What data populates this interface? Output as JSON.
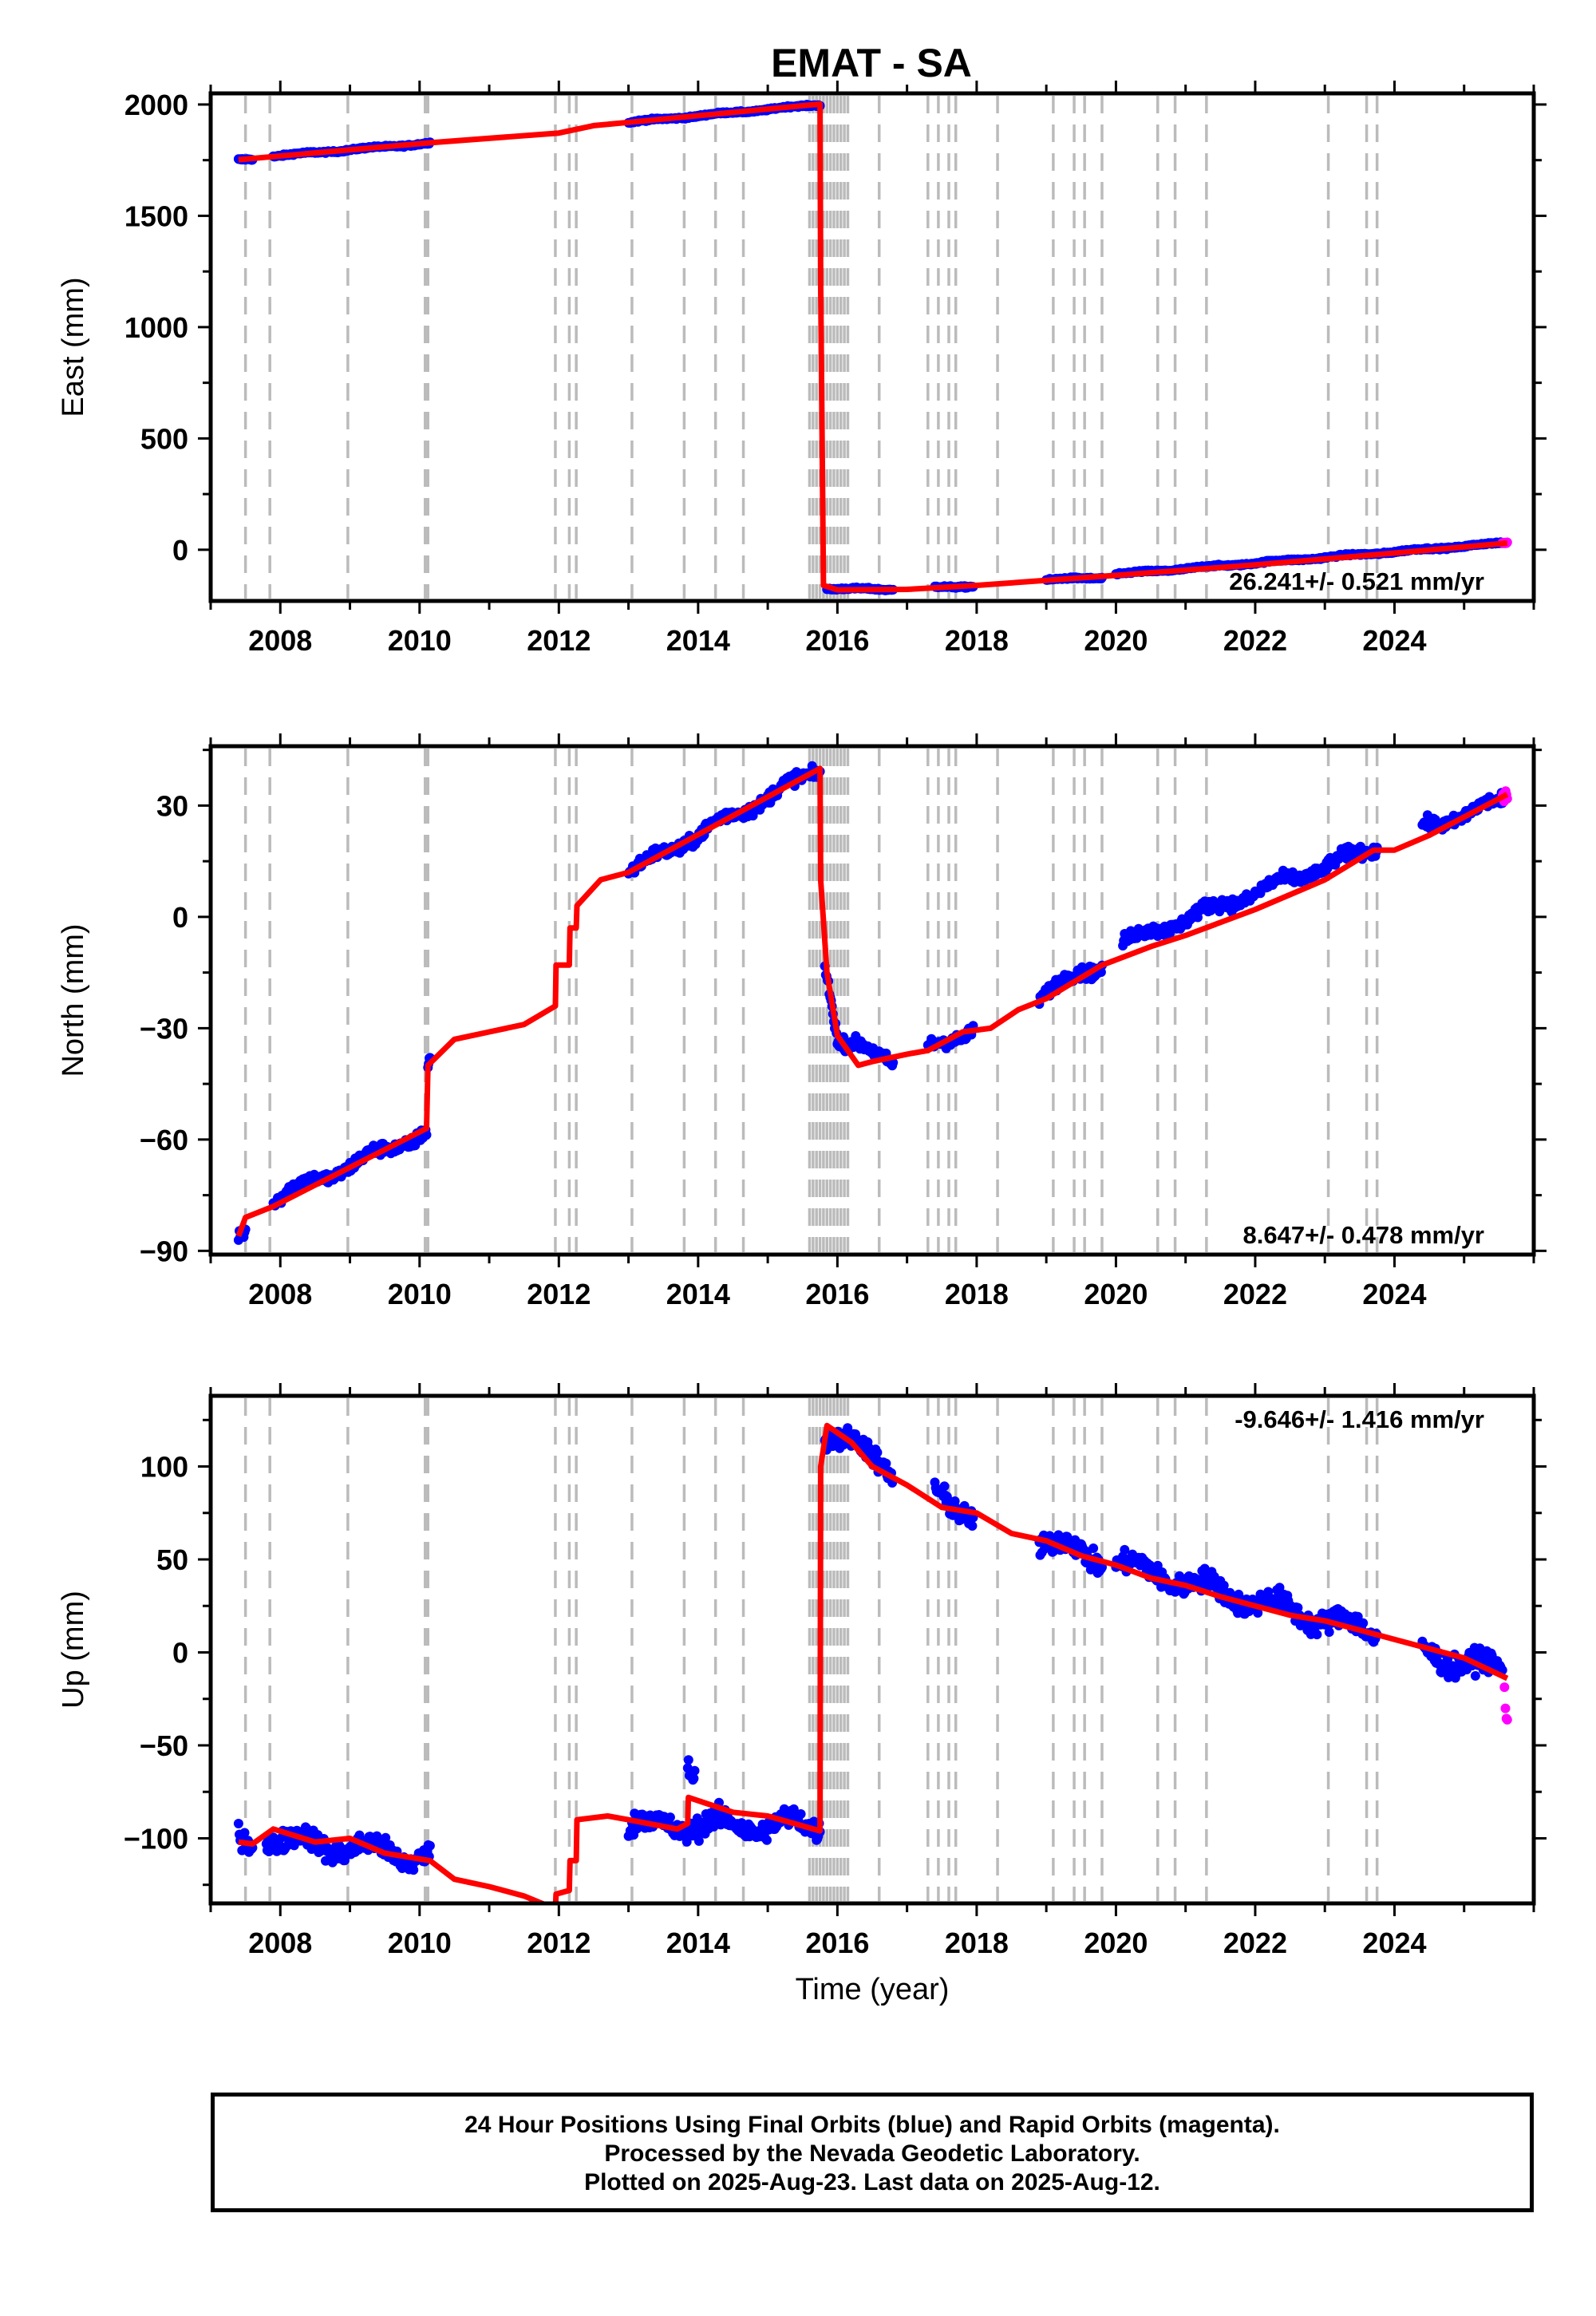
{
  "title": "EMAT - SA",
  "footer": {
    "line1": "24 Hour Positions Using Final Orbits (blue) and Rapid Orbits (magenta).",
    "line2": "Processed by the Nevada Geodetic Laboratory.",
    "line3": "Plotted on 2025-Aug-23. Last data on 2025-Aug-12."
  },
  "chart_data": [
    {
      "type": "scatter",
      "name": "east",
      "title": "EMAT - SA",
      "xlabel": "",
      "ylabel": "East (mm)",
      "xlim": [
        2007.0,
        2026.0
      ],
      "ylim": [
        -230,
        2050
      ],
      "x_ticks": [
        2008,
        2010,
        2012,
        2014,
        2016,
        2018,
        2020,
        2022,
        2024
      ],
      "y_ticks": [
        0,
        500,
        1000,
        1500,
        2000
      ],
      "rate_label": "26.241+/- 0.521 mm/yr",
      "rate_position": "bottom-right",
      "colors": {
        "final": "#0000ff",
        "rapid": "#ff00ff",
        "model": "#ff0000",
        "event_lines": "#bbbbbb"
      },
      "event_lines": [
        2007.5,
        2007.85,
        2008.97,
        2010.08,
        2010.12,
        2011.95,
        2012.15,
        2012.25,
        2013.05,
        2013.8,
        2014.25,
        2014.65,
        2015.6,
        2015.65,
        2015.7,
        2015.75,
        2015.8,
        2015.85,
        2015.9,
        2015.95,
        2016.0,
        2016.05,
        2016.1,
        2016.15,
        2016.6,
        2017.3,
        2017.45,
        2017.6,
        2017.7,
        2018.3,
        2019.1,
        2019.4,
        2019.55,
        2019.8,
        2020.6,
        2020.85,
        2021.3,
        2023.05,
        2023.6,
        2023.75
      ],
      "final_segments": [
        {
          "x": [
            2007.4,
            2007.6
          ],
          "y": [
            1750,
            1755
          ]
        },
        {
          "x": [
            2007.9,
            2010.15
          ],
          "y": [
            1768,
            1827
          ]
        },
        {
          "x": [
            2013.0,
            2015.75
          ],
          "y": [
            1920,
            2000
          ]
        },
        {
          "x": [
            2015.85,
            2016.8
          ],
          "y": [
            -175,
            -178
          ]
        },
        {
          "x": [
            2017.4,
            2017.95
          ],
          "y": [
            -168,
            -163
          ]
        },
        {
          "x": [
            2019.0,
            2019.8
          ],
          "y": [
            -135,
            -125
          ]
        },
        {
          "x": [
            2020.0,
            2025.55
          ],
          "y": [
            -110,
            30
          ]
        }
      ],
      "rapid_segments": [
        {
          "x": [
            2025.55,
            2025.62
          ],
          "y": [
            30,
            33
          ]
        }
      ],
      "model": {
        "x": [
          2007.4,
          2007.9,
          2010.15,
          2012.0,
          2012.5,
          2013.0,
          2015.75,
          2015.76,
          2015.8,
          2016.0,
          2017.0,
          2018.0,
          2020.0,
          2022.0,
          2024.0,
          2025.62
        ],
        "y": [
          1752,
          1766,
          1828,
          1872,
          1905,
          1920,
          2002,
          1200,
          -160,
          -180,
          -178,
          -160,
          -115,
          -68,
          -15,
          30
        ]
      }
    },
    {
      "type": "scatter",
      "name": "north",
      "xlabel": "",
      "ylabel": "North (mm)",
      "xlim": [
        2007.0,
        2026.0
      ],
      "ylim": [
        -91,
        46
      ],
      "x_ticks": [
        2008,
        2010,
        2012,
        2014,
        2016,
        2018,
        2020,
        2022,
        2024
      ],
      "y_ticks": [
        -90,
        -60,
        -30,
        0,
        30
      ],
      "y_tick_labels": [
        "−90",
        "−60",
        "−30",
        "0",
        "30"
      ],
      "rate_label": "8.647+/- 0.478 mm/yr",
      "rate_position": "bottom-right",
      "final_segments": [
        {
          "x": [
            2007.4,
            2007.5
          ],
          "y": [
            -87,
            -85
          ]
        },
        {
          "x": [
            2007.9,
            2010.1
          ],
          "y": [
            -76,
            -58
          ]
        },
        {
          "x": [
            2010.12,
            2010.15
          ],
          "y": [
            -41,
            -38
          ]
        },
        {
          "x": [
            2013.0,
            2015.75
          ],
          "y": [
            12,
            40
          ]
        },
        {
          "x": [
            2015.82,
            2016.0
          ],
          "y": [
            -12,
            -32
          ]
        },
        {
          "x": [
            2016.0,
            2016.8
          ],
          "y": [
            -34,
            -38
          ]
        },
        {
          "x": [
            2017.3,
            2017.95
          ],
          "y": [
            -36,
            -30
          ]
        },
        {
          "x": [
            2018.9,
            2019.8
          ],
          "y": [
            -21,
            -13
          ]
        },
        {
          "x": [
            2020.1,
            2023.75
          ],
          "y": [
            -7,
            19
          ]
        },
        {
          "x": [
            2024.4,
            2025.55
          ],
          "y": [
            24,
            31
          ]
        }
      ],
      "rapid_segments": [
        {
          "x": [
            2025.55,
            2025.62
          ],
          "y": [
            32,
            33
          ]
        }
      ],
      "model": {
        "x": [
          2007.4,
          2007.5,
          2007.9,
          2010.1,
          2010.12,
          2010.5,
          2011.0,
          2011.5,
          2011.95,
          2011.96,
          2012.15,
          2012.16,
          2012.25,
          2012.26,
          2012.6,
          2013.0,
          2015.75,
          2015.76,
          2015.85,
          2016.0,
          2016.3,
          2016.5,
          2017.0,
          2017.3,
          2017.8,
          2018.2,
          2018.6,
          2019.0,
          2019.8,
          2020.5,
          2021.0,
          2022.0,
          2023.0,
          2023.7,
          2024.0,
          2024.5,
          2025.62
        ],
        "y": [
          -86,
          -81,
          -78,
          -57,
          -40,
          -33,
          -31,
          -29,
          -24,
          -13,
          -13,
          -3,
          -3,
          3,
          10,
          12,
          40,
          10,
          -15,
          -32,
          -40,
          -39,
          -37,
          -36,
          -31,
          -30,
          -25,
          -22,
          -13,
          -8,
          -5,
          2,
          10,
          18,
          18,
          22,
          33
        ]
      }
    },
    {
      "type": "scatter",
      "name": "up",
      "xlabel": "Time (year)",
      "ylabel": "Up (mm)",
      "xlim": [
        2007.0,
        2026.0
      ],
      "ylim": [
        -135,
        138
      ],
      "x_ticks": [
        2008,
        2010,
        2012,
        2014,
        2016,
        2018,
        2020,
        2022,
        2024
      ],
      "y_ticks": [
        -100,
        -50,
        0,
        50,
        100
      ],
      "y_tick_labels": [
        "−100",
        "−50",
        "0",
        "50",
        "100"
      ],
      "rate_label": "-9.646+/- 1.416 mm/yr",
      "rate_position": "top-right",
      "final_segments": [
        {
          "x": [
            2007.4,
            2007.6
          ],
          "y": [
            -101,
            -103
          ]
        },
        {
          "x": [
            2007.8,
            2010.15
          ],
          "y": [
            -100,
            -110
          ]
        },
        {
          "x": [
            2013.0,
            2015.75
          ],
          "y": [
            -93,
            -93
          ]
        },
        {
          "x": [
            2013.85,
            2013.95
          ],
          "y": [
            -55,
            -65
          ]
        },
        {
          "x": [
            2015.82,
            2016.8
          ],
          "y": [
            120,
            98
          ]
        },
        {
          "x": [
            2017.4,
            2017.95
          ],
          "y": [
            85,
            75
          ]
        },
        {
          "x": [
            2018.9,
            2019.8
          ],
          "y": [
            60,
            50
          ]
        },
        {
          "x": [
            2020.0,
            2023.75
          ],
          "y": [
            48,
            10
          ]
        },
        {
          "x": [
            2024.4,
            2025.55
          ],
          "y": [
            0,
            -10
          ]
        }
      ],
      "rapid_segments": [
        {
          "x": [
            2025.58,
            2025.62
          ],
          "y": [
            -22,
            -35
          ]
        }
      ],
      "model": {
        "x": [
          2007.4,
          2007.6,
          2007.9,
          2008.5,
          2009.0,
          2009.5,
          2010.15,
          2010.5,
          2011.0,
          2011.5,
          2011.95,
          2011.96,
          2012.15,
          2012.16,
          2012.25,
          2012.26,
          2012.7,
          2013.0,
          2013.7,
          2013.85,
          2013.86,
          2014.5,
          2015.0,
          2015.75,
          2015.76,
          2015.85,
          2016.2,
          2016.5,
          2017.0,
          2017.5,
          2018.0,
          2018.5,
          2019.0,
          2019.5,
          2020.0,
          2020.5,
          2021.0,
          2021.5,
          2022.0,
          2022.5,
          2023.0,
          2023.5,
          2024.0,
          2024.5,
          2025.0,
          2025.62
        ],
        "y": [
          -102,
          -103,
          -95,
          -102,
          -100,
          -108,
          -112,
          -122,
          -126,
          -131,
          -138,
          -130,
          -128,
          -112,
          -112,
          -90,
          -88,
          -90,
          -95,
          -92,
          -78,
          -86,
          -88,
          -96,
          100,
          122,
          113,
          100,
          90,
          78,
          75,
          64,
          60,
          52,
          47,
          40,
          36,
          30,
          25,
          20,
          17,
          12,
          7,
          2,
          -3,
          -14
        ]
      }
    }
  ]
}
